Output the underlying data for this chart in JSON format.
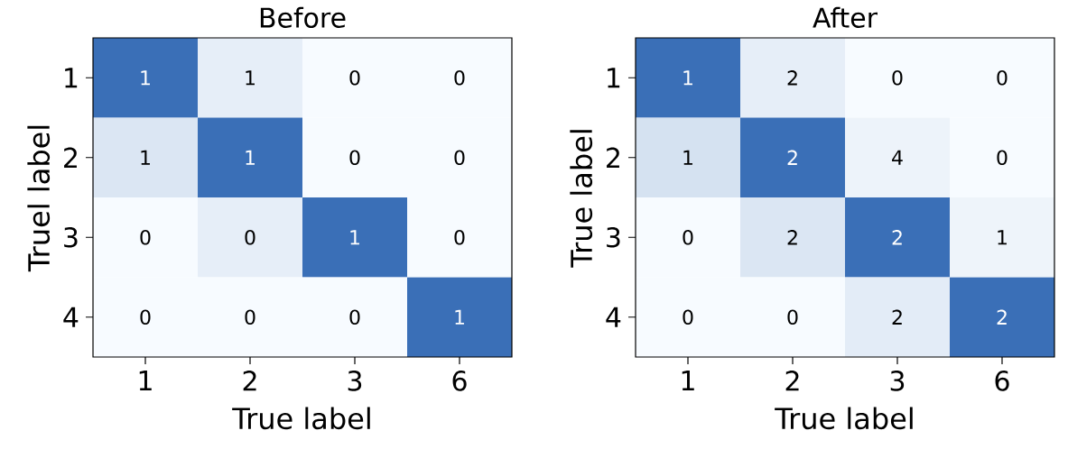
{
  "chart_data": [
    {
      "type": "heatmap",
      "title": "Before",
      "xlabel": "True label",
      "ylabel": "Truel label",
      "categories": [
        "1",
        "2",
        "3",
        "6"
      ],
      "y_categories": [
        "1",
        "2",
        "3",
        "4"
      ],
      "data_labels": true,
      "cells": [
        [
          1,
          1,
          0,
          0
        ],
        [
          1,
          1,
          0,
          0
        ],
        [
          0,
          0,
          1,
          0
        ],
        [
          0,
          0,
          0,
          1
        ]
      ],
      "colors": [
        [
          "#3a6fb7",
          "#e6eef8",
          "#f7fbff",
          "#f7fbff"
        ],
        [
          "#dbe6f3",
          "#3a6fb7",
          "#f7fbff",
          "#f7fbff"
        ],
        [
          "#f7fbff",
          "#e6eef8",
          "#3a6fb7",
          "#f7fbff"
        ],
        [
          "#f7fbff",
          "#f7fbff",
          "#f7fbff",
          "#3a6fb7"
        ]
      ]
    },
    {
      "type": "heatmap",
      "title": "After",
      "xlabel": "True label",
      "ylabel": "True label",
      "categories": [
        "1",
        "2",
        "3",
        "6"
      ],
      "y_categories": [
        "1",
        "2",
        "3",
        "4"
      ],
      "data_labels": true,
      "cells": [
        [
          1,
          2,
          0,
          0
        ],
        [
          1,
          2,
          4,
          0
        ],
        [
          0,
          2,
          2,
          1
        ],
        [
          0,
          0,
          2,
          2
        ]
      ],
      "colors": [
        [
          "#3a6fb7",
          "#e6eef8",
          "#f7fbff",
          "#f7fbff"
        ],
        [
          "#d5e2f1",
          "#3a6fb7",
          "#edf3fa",
          "#f7fbff"
        ],
        [
          "#f7fbff",
          "#dbe6f3",
          "#3a6fb7",
          "#eef4fa"
        ],
        [
          "#f7fbff",
          "#f7fbff",
          "#e3ecf7",
          "#3a6fb7"
        ]
      ]
    }
  ]
}
